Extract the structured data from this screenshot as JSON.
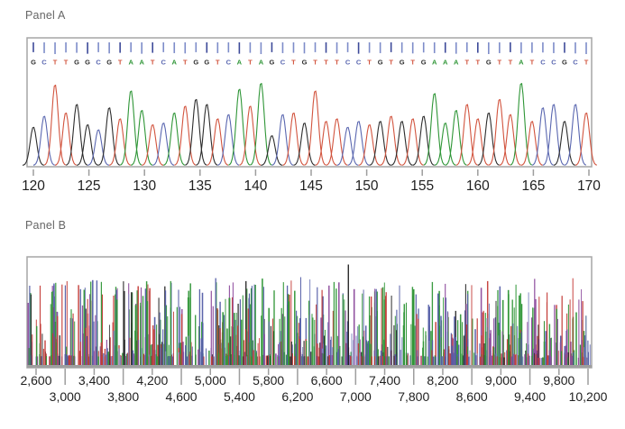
{
  "chart_data": [
    {
      "type": "line",
      "subtype": "sanger-sequencing-chromatogram",
      "title": "Panel A",
      "sequence": "GCTTGGCGTAATCATGGTCATAGCTGTTTCCTGTGTGAAATTGTTATCCGCT",
      "first_base_position": 120,
      "x_ticks": [
        120,
        125,
        130,
        135,
        140,
        145,
        150,
        155,
        160,
        165,
        170
      ],
      "xlim": [
        119.4,
        170.3
      ],
      "grid": false,
      "legend": "none",
      "peak_heights": [
        0.45,
        0.58,
        0.95,
        0.62,
        0.72,
        0.48,
        0.42,
        0.68,
        0.55,
        0.88,
        0.65,
        0.48,
        0.5,
        0.62,
        0.7,
        0.78,
        0.72,
        0.55,
        0.6,
        0.9,
        0.7,
        0.97,
        0.35,
        0.6,
        0.62,
        0.5,
        0.88,
        0.52,
        0.55,
        0.45,
        0.52,
        0.48,
        0.52,
        0.58,
        0.52,
        0.55,
        0.58,
        0.85,
        0.5,
        0.65,
        0.72,
        0.55,
        0.62,
        0.78,
        0.6,
        0.97,
        0.52,
        0.68,
        0.72,
        0.52,
        0.72,
        0.62
      ],
      "quality_bar_heights": [
        0.7,
        0.85,
        1,
        0.75,
        0.8,
        0.95,
        0.7,
        0.9,
        0.8,
        0.7,
        0.95,
        0.8,
        0.7,
        0.85,
        0.9,
        0.7,
        0.8,
        0.85,
        0.75,
        0.95,
        0.8,
        1,
        0.7,
        0.85,
        0.8,
        0.9,
        0.7,
        0.8,
        0.9,
        0.7,
        0.95,
        0.8,
        0.85,
        0.7,
        0.8,
        0.9,
        0.75,
        0.85,
        0.8,
        0.95,
        0.7,
        0.8,
        1,
        0.85,
        0.7,
        0.9,
        0.8,
        0.75,
        0.85,
        0.8,
        0.9,
        1
      ],
      "base_colors": {
        "A": "#2f9637",
        "C": "#5a67b0",
        "G": "#2d2d2d",
        "T": "#d2543e"
      },
      "quality_bar_colors": {
        "light": "#7d8cc9",
        "dark": "#3d4a99"
      },
      "frame_color": "#a6a6a6",
      "axis_color": "#9e9e9e",
      "tick_label_color": "#1f1f1f"
    },
    {
      "type": "line",
      "subtype": "dense-electropherogram",
      "title": "Panel B",
      "x_tick_values": [
        2600,
        3000,
        3400,
        3800,
        4200,
        4600,
        5000,
        5400,
        5800,
        6200,
        6600,
        7000,
        7400,
        7800,
        8200,
        8600,
        9000,
        9400,
        9800,
        10200
      ],
      "x_tick_labels_row1": [
        "2,600",
        "3,400",
        "4,200",
        "5,000",
        "5,800",
        "6,600",
        "7,400",
        "8,200",
        "9,000",
        "9,800"
      ],
      "x_tick_labels_row2": [
        "3,000",
        "3,800",
        "4,600",
        "5,400",
        "6,200",
        "7,000",
        "7,800",
        "8,600",
        "9,400",
        "10,200"
      ],
      "xlim": [
        2480,
        10250
      ],
      "grid": false,
      "legend": "none",
      "spike": {
        "x": 6900,
        "color": "#1a1a1a",
        "rel_height": 1.0
      },
      "trace_colors": [
        "#2f9637",
        "#535da6",
        "#c43c38",
        "#8c4a9c",
        "#2e2e2e",
        "#8087c0"
      ],
      "trace_color_weights": [
        0.28,
        0.22,
        0.2,
        0.12,
        0.1,
        0.08
      ],
      "noise_seed": 20,
      "n_spikes": 980,
      "frame_color": "#a6a6a6",
      "axis_color": "#9e9e9e",
      "tick_label_color": "#1f1f1f"
    }
  ]
}
